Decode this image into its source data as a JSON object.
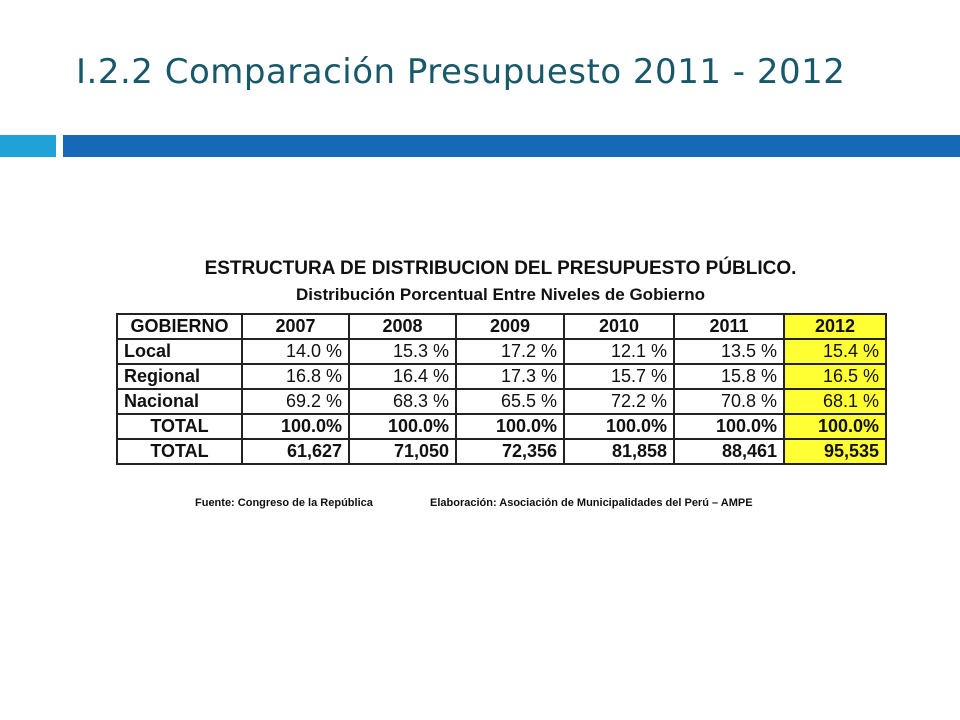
{
  "slide": {
    "title": "I.2.2 Comparación Presupuesto 2011 - 2012",
    "accent_colors": {
      "small_bar": "#1fa2d8",
      "large_bar": "#1569b7",
      "title_text": "#17586b",
      "highlight": "#ffff33"
    }
  },
  "table": {
    "title": "ESTRUCTURA DE DISTRIBUCION DEL PRESUPUESTO PÚBLICO.",
    "subtitle": "Distribución Porcentual Entre Niveles de Gobierno",
    "headers": [
      "GOBIERNO",
      "2007",
      "2008",
      "2009",
      "2010",
      "2011",
      "2012"
    ],
    "highlighted_column": "2012",
    "rows": [
      {
        "label": "Local",
        "values": [
          "14.0 %",
          "15.3 %",
          "17.2 %",
          "12.1 %",
          "13.5 %",
          "15.4 %"
        ]
      },
      {
        "label": "Regional",
        "values": [
          "16.8 %",
          "16.4 %",
          "17.3 %",
          "15.7 %",
          "15.8 %",
          "16.5 %"
        ]
      },
      {
        "label": "Nacional",
        "values": [
          "69.2 %",
          "68.3 %",
          "65.5 %",
          "72.2 %",
          "70.8 %",
          "68.1 %"
        ]
      },
      {
        "label": "TOTAL",
        "values": [
          "100.0%",
          "100.0%",
          "100.0%",
          "100.0%",
          "100.0%",
          "100.0%"
        ]
      },
      {
        "label": "TOTAL",
        "values": [
          "61,627",
          "71,050",
          "72,356",
          "81,858",
          "88,461",
          "95,535"
        ]
      }
    ]
  },
  "footnotes": {
    "source": "Fuente: Congreso de la República",
    "credit": "Elaboración: Asociación de Municipalidades del Perú – AMPE"
  }
}
